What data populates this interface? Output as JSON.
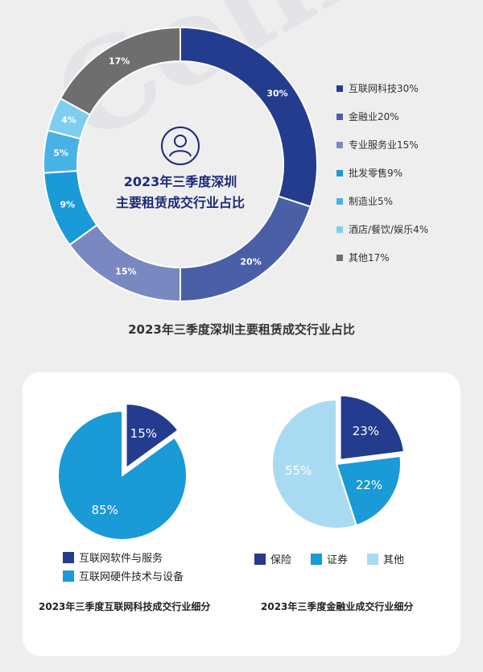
{
  "watermark": "Colliers",
  "main_chart": {
    "center_title_line1": "2023年三季度深圳",
    "center_title_line2": "主要租赁成交行业占比",
    "caption": "2023年三季度深圳主要租赁成交行业占比",
    "icon": "user-icon"
  },
  "sub_charts": {
    "internet_caption": "2023年三季度互联网科技成交行业细分",
    "finance_caption": "2023年三季度金融业成交行业细分"
  },
  "chart_data": [
    {
      "type": "pie",
      "subtype": "donut",
      "categories": [
        "互联网科技",
        "金融业",
        "专业服务业",
        "批发零售",
        "制造业",
        "酒店/餐饮/娱乐",
        "其他"
      ],
      "values": [
        30,
        20,
        15,
        9,
        5,
        4,
        17
      ],
      "value_labels": [
        "30%",
        "20%",
        "15%",
        "9%",
        "5%",
        "4%",
        "17%"
      ],
      "legend_labels": [
        "互联网科技30%",
        "金融业20%",
        "专业服务业15%",
        "批发零售9%",
        "制造业5%",
        "酒店/餐饮/娱乐4%",
        "其他17%"
      ],
      "colors": [
        "#233c8e",
        "#4a5fa5",
        "#7a88c2",
        "#1a9ad6",
        "#47b2e4",
        "#7fcdef",
        "#6e6e6e"
      ],
      "legend_position": "right"
    },
    {
      "type": "pie",
      "categories": [
        "互联网软件与服务",
        "互联网硬件技术与设备"
      ],
      "values": [
        15,
        85
      ],
      "value_labels": [
        "15%",
        "85%"
      ],
      "colors": [
        "#233c8e",
        "#1a9ad6"
      ],
      "exploded": [
        true,
        false
      ],
      "legend_position": "bottom"
    },
    {
      "type": "pie",
      "categories": [
        "保险",
        "证券",
        "其他"
      ],
      "values": [
        23,
        22,
        55
      ],
      "value_labels": [
        "23%",
        "22%",
        "55%"
      ],
      "colors": [
        "#233c8e",
        "#1a9ad6",
        "#a8dbf2"
      ],
      "exploded": [
        true,
        false,
        false
      ],
      "legend_position": "bottom"
    }
  ]
}
